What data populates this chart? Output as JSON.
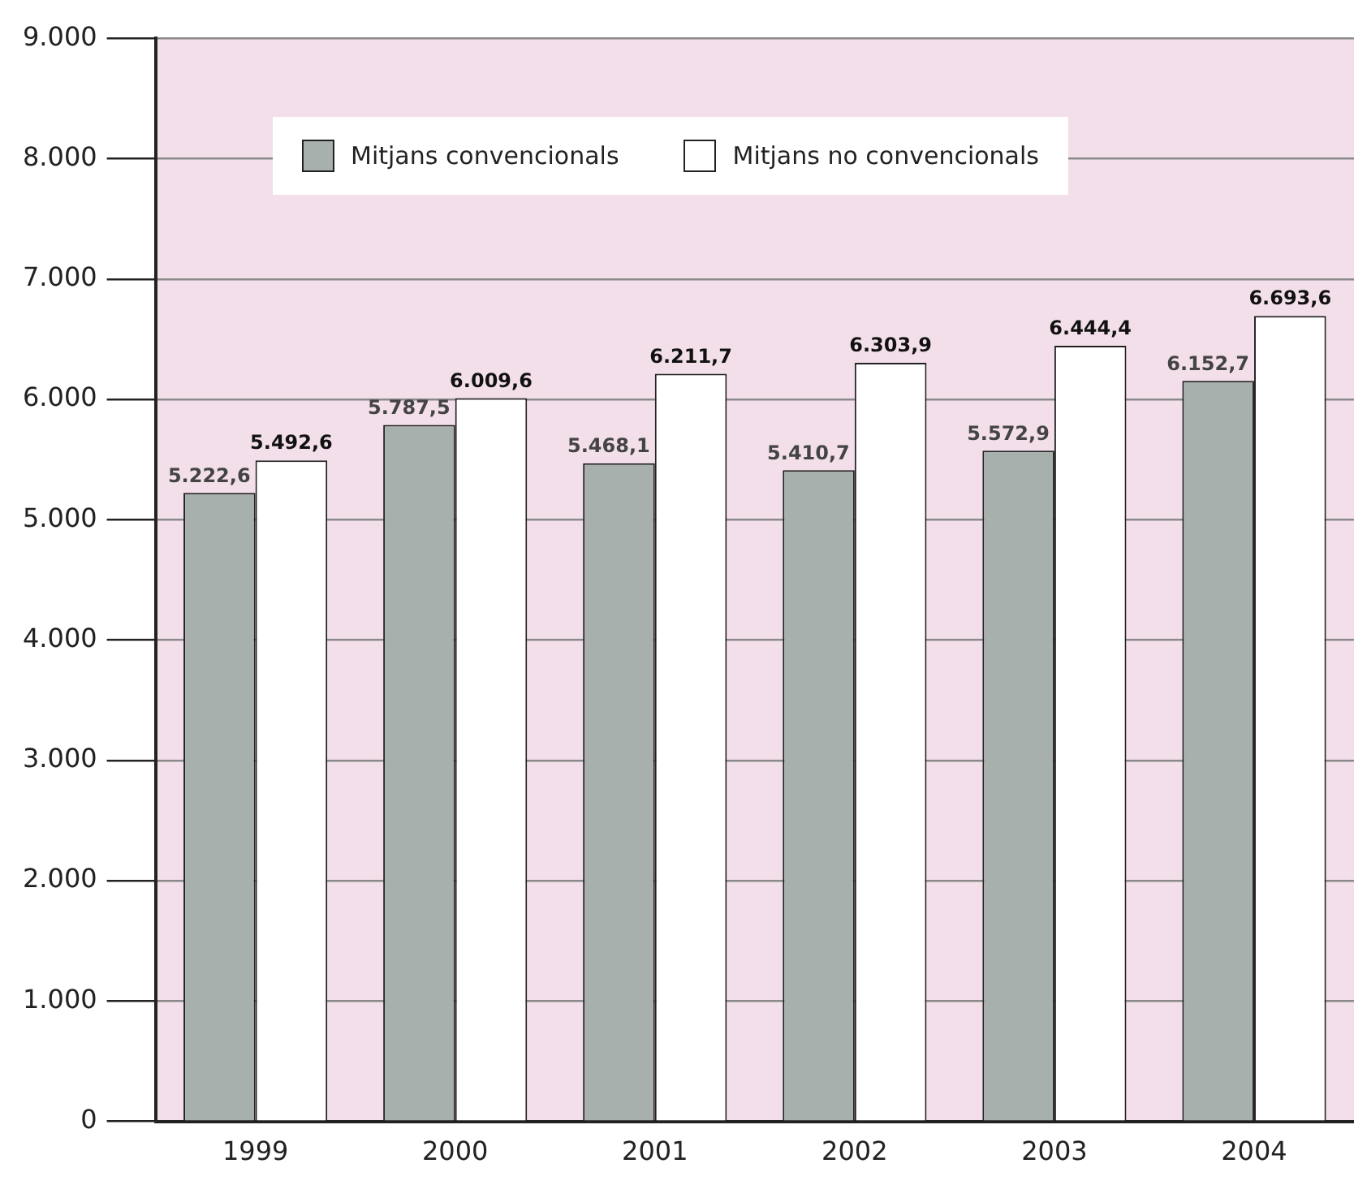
{
  "chart_data": {
    "type": "bar",
    "categories": [
      "1999",
      "2000",
      "2001",
      "2002",
      "2003",
      "2004"
    ],
    "series": [
      {
        "name": "Mitjans convencionals",
        "color": "#a7b0ac",
        "values": [
          5222.6,
          5787.5,
          5468.1,
          5410.7,
          5572.9,
          6152.7
        ],
        "value_labels": [
          "5.222,6",
          "5.787,5",
          "5.468,1",
          "5.410,7",
          "5.572,9",
          "6.152,7"
        ]
      },
      {
        "name": "Mitjans no convencionals",
        "color": "#ffffff",
        "values": [
          5492.6,
          6009.6,
          6211.7,
          6303.9,
          6444.4,
          6693.6
        ],
        "value_labels": [
          "5.492,6",
          "6.009,6",
          "6.211,7",
          "6.303,9",
          "6.444,4",
          "6.693,6"
        ]
      }
    ],
    "ylim": [
      0,
      9000
    ],
    "yticks": [
      {
        "value": 0,
        "label": "0"
      },
      {
        "value": 1000,
        "label": "1.000"
      },
      {
        "value": 2000,
        "label": "2.000"
      },
      {
        "value": 3000,
        "label": "3.000"
      },
      {
        "value": 4000,
        "label": "4.000"
      },
      {
        "value": 5000,
        "label": "5.000"
      },
      {
        "value": 6000,
        "label": "6.000"
      },
      {
        "value": 7000,
        "label": "7.000"
      },
      {
        "value": 8000,
        "label": "8.000"
      },
      {
        "value": 9000,
        "label": "9.000"
      }
    ],
    "grid": "y",
    "legend": "top left"
  }
}
